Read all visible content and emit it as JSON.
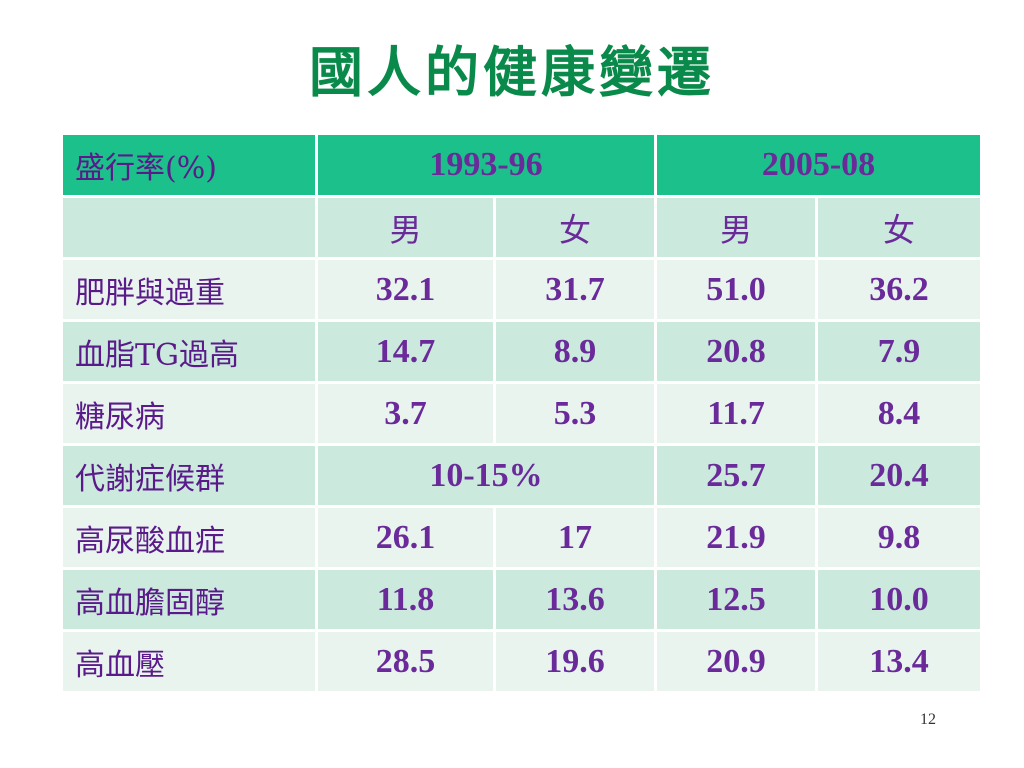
{
  "title": "國人的健康變遷",
  "table": {
    "header": {
      "label": "盛行率(%)",
      "periods": [
        "1993-96",
        "2005-08"
      ]
    },
    "subheader": [
      "",
      "男",
      "女",
      "男",
      "女"
    ],
    "rows": [
      {
        "label": "肥胖與過重",
        "values": [
          "32.1",
          "31.7",
          "51.0",
          "36.2"
        ]
      },
      {
        "label": "血脂TG過高",
        "values": [
          "14.7",
          "8.9",
          "20.8",
          "7.9"
        ]
      },
      {
        "label": "糖尿病",
        "values": [
          "3.7",
          "5.3",
          "11.7",
          "8.4"
        ]
      },
      {
        "label": "代謝症候群",
        "values": [
          "10-15%",
          "25.7",
          "20.4"
        ]
      },
      {
        "label": "高尿酸血症",
        "values": [
          "26.1",
          "17",
          "21.9",
          "9.8"
        ]
      },
      {
        "label": "高血膽固醇",
        "values": [
          "11.8",
          "13.6",
          "12.5",
          "10.0"
        ]
      },
      {
        "label": "高血壓",
        "values": [
          "28.5",
          "19.6",
          "20.9",
          "13.4"
        ]
      }
    ]
  },
  "page_number": "12",
  "colors": {
    "title": "#0a8a4a",
    "header_bg": "#1cc08a",
    "row_dark": "#cbe9dc",
    "row_light": "#e9f4ee",
    "text": "#6a2a9a"
  }
}
